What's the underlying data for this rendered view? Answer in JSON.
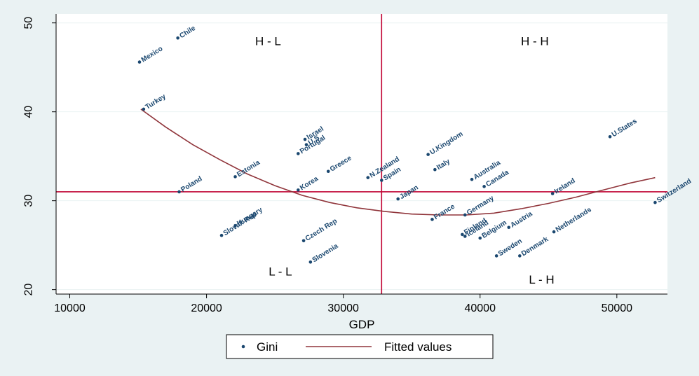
{
  "chart_data": {
    "type": "scatter",
    "title": "",
    "xlabel": "GDP",
    "ylabel": "",
    "xlim": [
      9000,
      53700
    ],
    "ylim": [
      19.5,
      51
    ],
    "xticks": [
      10000,
      20000,
      30000,
      40000,
      50000
    ],
    "yticks": [
      20,
      30,
      40,
      50
    ],
    "grid": true,
    "legend_placement": "bottom",
    "colors": {
      "points": "#1a476f",
      "fitted": "#90353b",
      "reference": "#c10534",
      "grid": "#eaf2f3",
      "plot_bg": "#ffffff",
      "outer_bg": "#eaf2f3"
    },
    "series": [
      {
        "name": "Gini",
        "kind": "scatter",
        "points": [
          {
            "label": "Mexico",
            "x": 15100,
            "y": 45.6
          },
          {
            "label": "Chile",
            "x": 17900,
            "y": 48.3
          },
          {
            "label": "Turkey",
            "x": 15400,
            "y": 40.3
          },
          {
            "label": "Poland",
            "x": 18000,
            "y": 31.0
          },
          {
            "label": "Estonia",
            "x": 22100,
            "y": 32.7
          },
          {
            "label": "Slovak Rep",
            "x": 21100,
            "y": 26.1
          },
          {
            "label": "Hungary",
            "x": 22100,
            "y": 27.2
          },
          {
            "label": "Israel",
            "x": 27200,
            "y": 36.9
          },
          {
            "label": "Portugal",
            "x": 26700,
            "y": 35.3
          },
          {
            "label": "U.S",
            "x": 27300,
            "y": 36.3
          },
          {
            "label": "Greece",
            "x": 28900,
            "y": 33.3
          },
          {
            "label": "Korea",
            "x": 26700,
            "y": 31.2
          },
          {
            "label": "Czech Rep",
            "x": 27100,
            "y": 25.5
          },
          {
            "label": "Slovenia",
            "x": 27600,
            "y": 23.1
          },
          {
            "label": "N.Zealand",
            "x": 31800,
            "y": 32.6
          },
          {
            "label": "Spain",
            "x": 32800,
            "y": 32.3
          },
          {
            "label": "Japan",
            "x": 34000,
            "y": 30.2
          },
          {
            "label": "U.Kingdom",
            "x": 36200,
            "y": 35.2
          },
          {
            "label": "Italy",
            "x": 36700,
            "y": 33.5
          },
          {
            "label": "France",
            "x": 36500,
            "y": 27.9
          },
          {
            "label": "Germany",
            "x": 38900,
            "y": 28.4
          },
          {
            "label": "Australia",
            "x": 39400,
            "y": 32.4
          },
          {
            "label": "Canada",
            "x": 40300,
            "y": 31.6
          },
          {
            "label": "Finland",
            "x": 38700,
            "y": 26.2
          },
          {
            "label": "Iceland",
            "x": 38900,
            "y": 26.0
          },
          {
            "label": "Belgium",
            "x": 40000,
            "y": 25.8
          },
          {
            "label": "Austria",
            "x": 42100,
            "y": 27.0
          },
          {
            "label": "Sweden",
            "x": 41200,
            "y": 23.8
          },
          {
            "label": "Denmark",
            "x": 42900,
            "y": 23.8
          },
          {
            "label": "Netherlands",
            "x": 45400,
            "y": 26.5
          },
          {
            "label": "Ireland",
            "x": 45300,
            "y": 30.8
          },
          {
            "label": "U.States",
            "x": 49500,
            "y": 37.2
          },
          {
            "label": "Switzerland",
            "x": 52800,
            "y": 29.8
          }
        ]
      },
      {
        "name": "Fitted values",
        "kind": "line",
        "x": [
          15200,
          17000,
          19000,
          21000,
          23000,
          25000,
          27000,
          29000,
          31000,
          33000,
          35000,
          37000,
          39000,
          41000,
          43000,
          45000,
          47000,
          49000,
          51000,
          52800
        ],
        "y": [
          40.3,
          38.3,
          36.3,
          34.6,
          33.0,
          31.7,
          30.6,
          29.8,
          29.2,
          28.8,
          28.5,
          28.4,
          28.4,
          28.6,
          29.1,
          29.7,
          30.4,
          31.2,
          32.0,
          32.6
        ]
      }
    ],
    "reference_lines": {
      "x": 32800,
      "y": 31.0
    },
    "annotations": [
      {
        "text": "H - L",
        "x": 24500,
        "y": 47.5
      },
      {
        "text": "H - H",
        "x": 44000,
        "y": 47.5
      },
      {
        "text": "L - L",
        "x": 25400,
        "y": 21.6
      },
      {
        "text": "L - H",
        "x": 44500,
        "y": 20.7
      }
    ]
  }
}
